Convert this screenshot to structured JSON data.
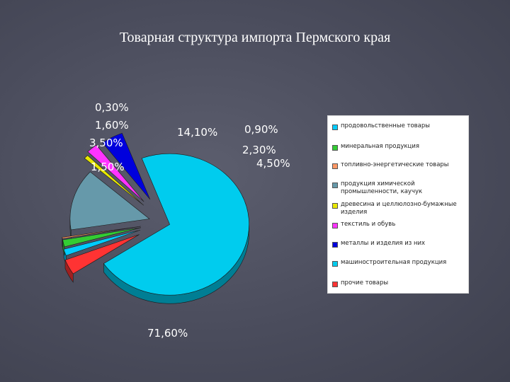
{
  "slide": {
    "title": "Товарная структура импорта Пермского края"
  },
  "chart_data": {
    "type": "pie",
    "style": "3d-exploded",
    "title": "Товарная структура импорта Пермского края",
    "legend_position": "right",
    "slices": [
      {
        "name": "продовольственные товары",
        "value": 1.5,
        "label": "1,50%",
        "color": "#00ccff"
      },
      {
        "name": "минеральная продукция",
        "value": 1.6,
        "label": "1,60%",
        "color": "#33cc33"
      },
      {
        "name": "топливно-энергетические товары",
        "value": 0.3,
        "label": "0,30%",
        "color": "#ff9966"
      },
      {
        "name": "продукция химической промышленности, каучук",
        "value": 14.1,
        "label": "14,10%",
        "color": "#6699aa"
      },
      {
        "name": "древесина и целлюлозно-бумажные изделия",
        "value": 0.9,
        "label": "0,90%",
        "color": "#e8e800"
      },
      {
        "name": "текстиль и обувь",
        "value": 2.3,
        "label": "2,30%",
        "color": "#ff33ff"
      },
      {
        "name": "металлы и изделия из них",
        "value": 4.5,
        "label": "4,50%",
        "color": "#0000dd"
      },
      {
        "name": "машиностроительная продукция",
        "value": 71.6,
        "label": "71,60%",
        "color": "#00ccee"
      },
      {
        "name": "прочие товары",
        "value": 3.5,
        "label": "3,50%",
        "color": "#ff3333"
      }
    ],
    "legend": [
      {
        "text": "продовольственные товары",
        "color": "#00ccff"
      },
      {
        "text": "минеральная продукция",
        "color": "#33cc33"
      },
      {
        "text": "топливно-энергетические товары",
        "color": "#ff9966"
      },
      {
        "text": "продукция химической промышленности, каучук",
        "color": "#6699aa"
      },
      {
        "text": "древесина и целлюлозно-бумажные изделия",
        "color": "#e8e800"
      },
      {
        "text": "текстиль и обувь",
        "color": "#ff33ff"
      },
      {
        "text": "металлы и изделия из них",
        "color": "#0000dd"
      },
      {
        "text": "машиностроительная продукция",
        "color": "#00ccee"
      },
      {
        "text": "прочие товары",
        "color": "#ff3333"
      }
    ]
  }
}
